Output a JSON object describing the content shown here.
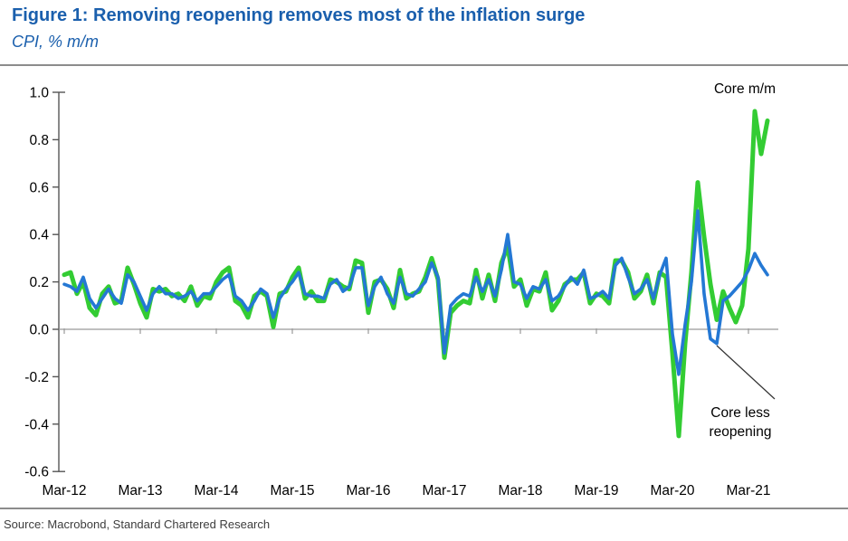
{
  "header": {
    "title": "Figure 1: Removing reopening removes most of the inflation surge",
    "subtitle": "CPI, % m/m"
  },
  "footer": {
    "source": "Source: Macrobond, Standard Chartered Research"
  },
  "chart_data": {
    "type": "line",
    "title": "Figure 1: Removing reopening removes most of the inflation surge",
    "subtitle": "CPI, % m/m",
    "x_start": "Mar-2012",
    "x_frequency": "monthly",
    "x_end": "Jun-2021",
    "xtick_labels": [
      "Mar-12",
      "Mar-13",
      "Mar-14",
      "Mar-15",
      "Mar-16",
      "Mar-17",
      "Mar-18",
      "Mar-19",
      "Mar-20",
      "Mar-21"
    ],
    "xtick_month_indices": [
      0,
      12,
      24,
      36,
      48,
      60,
      72,
      84,
      96,
      108
    ],
    "ylim": [
      -0.6,
      1.0
    ],
    "yticks": [
      1.0,
      0.8,
      0.6,
      0.4,
      0.2,
      0.0,
      -0.2,
      -0.4,
      -0.6
    ],
    "ytick_labels": [
      "1.0",
      "0.8",
      "0.6",
      "0.4",
      "0.2",
      "0.0",
      "-0.2",
      "-0.4",
      "-0.6"
    ],
    "grid": "zero-line-only",
    "legend_position": "end-of-line-labels",
    "series": [
      {
        "name": "Core m/m",
        "color": "#33CC33",
        "values": [
          0.23,
          0.24,
          0.15,
          0.2,
          0.09,
          0.06,
          0.15,
          0.18,
          0.11,
          0.12,
          0.26,
          0.19,
          0.11,
          0.05,
          0.17,
          0.16,
          0.17,
          0.14,
          0.15,
          0.12,
          0.18,
          0.1,
          0.14,
          0.13,
          0.2,
          0.24,
          0.26,
          0.12,
          0.1,
          0.05,
          0.14,
          0.16,
          0.14,
          0.01,
          0.15,
          0.16,
          0.22,
          0.26,
          0.13,
          0.16,
          0.12,
          0.12,
          0.21,
          0.2,
          0.18,
          0.17,
          0.29,
          0.28,
          0.07,
          0.2,
          0.21,
          0.17,
          0.09,
          0.25,
          0.13,
          0.15,
          0.16,
          0.22,
          0.3,
          0.21,
          -0.12,
          0.07,
          0.1,
          0.12,
          0.11,
          0.25,
          0.13,
          0.23,
          0.12,
          0.28,
          0.35,
          0.18,
          0.21,
          0.1,
          0.17,
          0.16,
          0.24,
          0.08,
          0.12,
          0.19,
          0.21,
          0.21,
          0.24,
          0.11,
          0.15,
          0.14,
          0.11,
          0.29,
          0.29,
          0.24,
          0.13,
          0.16,
          0.23,
          0.11,
          0.24,
          0.22,
          -0.1,
          -0.45,
          -0.06,
          0.24,
          0.62,
          0.39,
          0.19,
          0.04,
          0.16,
          0.09,
          0.03,
          0.1,
          0.34,
          0.92,
          0.74,
          0.88
        ]
      },
      {
        "name": "Core less reopening",
        "color": "#2478D4",
        "values": [
          0.19,
          0.18,
          0.16,
          0.22,
          0.13,
          0.09,
          0.13,
          0.17,
          0.13,
          0.11,
          0.23,
          0.2,
          0.14,
          0.08,
          0.15,
          0.18,
          0.15,
          0.15,
          0.13,
          0.14,
          0.16,
          0.12,
          0.15,
          0.15,
          0.18,
          0.21,
          0.23,
          0.14,
          0.12,
          0.08,
          0.12,
          0.17,
          0.15,
          0.05,
          0.13,
          0.17,
          0.2,
          0.24,
          0.15,
          0.14,
          0.14,
          0.13,
          0.19,
          0.21,
          0.16,
          0.18,
          0.26,
          0.26,
          0.1,
          0.18,
          0.22,
          0.15,
          0.11,
          0.22,
          0.15,
          0.14,
          0.17,
          0.2,
          0.28,
          0.22,
          -0.1,
          0.1,
          0.13,
          0.15,
          0.14,
          0.22,
          0.16,
          0.21,
          0.14,
          0.25,
          0.4,
          0.2,
          0.19,
          0.13,
          0.18,
          0.17,
          0.21,
          0.12,
          0.14,
          0.18,
          0.22,
          0.19,
          0.25,
          0.13,
          0.14,
          0.16,
          0.13,
          0.27,
          0.3,
          0.22,
          0.15,
          0.17,
          0.21,
          0.13,
          0.23,
          0.3,
          -0.02,
          -0.19,
          0.02,
          0.2,
          0.5,
          0.15,
          -0.04,
          -0.06,
          0.12,
          0.14,
          0.17,
          0.2,
          0.25,
          0.32,
          0.27,
          0.23
        ]
      }
    ],
    "annotations": {
      "core_mm": {
        "label": "Core m/m"
      },
      "core_less": {
        "full": "Core less reopening",
        "line1": "Core less",
        "line2": "reopening"
      }
    },
    "colors": {
      "title_blue": "#1A5FAD",
      "zero_line": "#999999",
      "axis": "#555555",
      "rule_gray": "#8c8c8c"
    }
  }
}
